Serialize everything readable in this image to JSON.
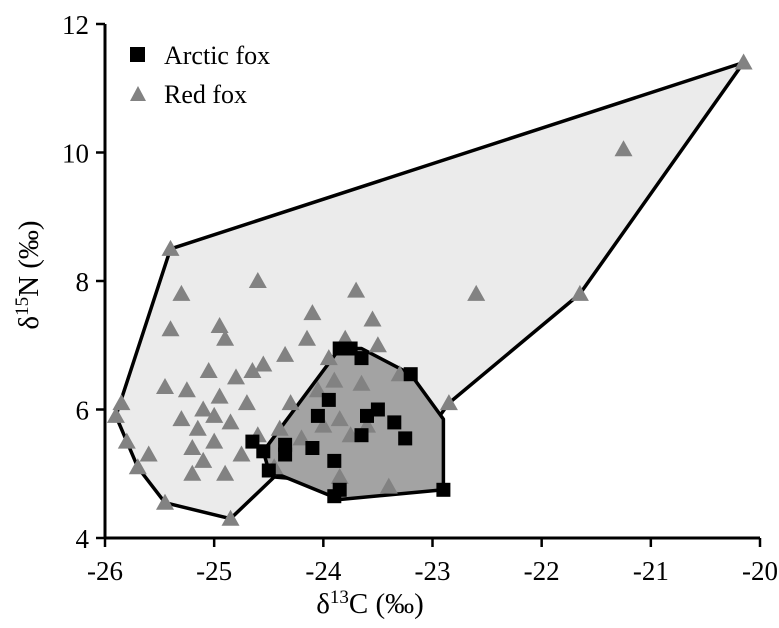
{
  "chart_data": {
    "type": "scatter",
    "xlabel": "δ13C (‰)",
    "ylabel": "δ15N (‰)",
    "xlabel_parts": {
      "prefix": "δ",
      "sup": "13",
      "suffix": "C (‰)"
    },
    "ylabel_parts": {
      "prefix": "δ",
      "sup": "15",
      "suffix": "N (‰)"
    },
    "xlim": [
      -26.0,
      -20.0
    ],
    "ylim": [
      4.0,
      12.0
    ],
    "xticks": [
      -26,
      -25,
      -24,
      -23,
      -22,
      -21,
      -20
    ],
    "yticks": [
      4,
      6,
      8,
      10,
      12
    ],
    "grid": false,
    "legend_position": "top-left",
    "series": [
      {
        "name": "Arctic fox",
        "marker": "square",
        "color": "#000000",
        "hull_fill": "#a3a3a3",
        "hull": [
          [
            -24.55,
            5.35
          ],
          [
            -23.85,
            6.95
          ],
          [
            -23.65,
            6.95
          ],
          [
            -23.2,
            6.55
          ],
          [
            -22.9,
            5.85
          ],
          [
            -22.9,
            4.75
          ],
          [
            -23.85,
            4.6
          ],
          [
            -24.5,
            5.05
          ]
        ],
        "points": [
          [
            -24.65,
            5.5
          ],
          [
            -24.55,
            5.35
          ],
          [
            -24.5,
            5.05
          ],
          [
            -24.35,
            5.3
          ],
          [
            -24.35,
            5.45
          ],
          [
            -24.1,
            5.4
          ],
          [
            -24.05,
            5.9
          ],
          [
            -23.95,
            6.15
          ],
          [
            -23.9,
            5.2
          ],
          [
            -23.9,
            4.65
          ],
          [
            -23.85,
            4.75
          ],
          [
            -23.85,
            6.95
          ],
          [
            -23.75,
            6.95
          ],
          [
            -23.65,
            6.8
          ],
          [
            -23.65,
            5.6
          ],
          [
            -23.6,
            5.9
          ],
          [
            -23.5,
            6.0
          ],
          [
            -23.35,
            5.8
          ],
          [
            -23.25,
            5.55
          ],
          [
            -23.2,
            6.55
          ],
          [
            -22.9,
            4.75
          ]
        ]
      },
      {
        "name": "Red fox",
        "marker": "triangle",
        "color": "#828282",
        "hull_fill": "#ebebeb",
        "hull": [
          [
            -25.9,
            5.9
          ],
          [
            -25.4,
            8.5
          ],
          [
            -20.15,
            11.4
          ],
          [
            -21.65,
            7.8
          ],
          [
            -22.85,
            6.1
          ],
          [
            -23.4,
            4.8
          ],
          [
            -24.45,
            4.95
          ],
          [
            -24.85,
            4.3
          ],
          [
            -25.45,
            4.55
          ],
          [
            -25.7,
            5.1
          ]
        ],
        "points": [
          [
            -25.9,
            5.9
          ],
          [
            -25.85,
            6.1
          ],
          [
            -25.8,
            5.5
          ],
          [
            -25.7,
            5.1
          ],
          [
            -25.6,
            5.3
          ],
          [
            -25.45,
            4.55
          ],
          [
            -25.45,
            6.35
          ],
          [
            -25.4,
            8.5
          ],
          [
            -25.4,
            7.25
          ],
          [
            -25.3,
            7.8
          ],
          [
            -25.3,
            5.85
          ],
          [
            -25.25,
            6.3
          ],
          [
            -25.2,
            5.4
          ],
          [
            -25.2,
            5.0
          ],
          [
            -25.15,
            5.7
          ],
          [
            -25.1,
            6.0
          ],
          [
            -25.1,
            5.2
          ],
          [
            -25.05,
            6.6
          ],
          [
            -25.0,
            5.9
          ],
          [
            -25.0,
            5.5
          ],
          [
            -24.95,
            7.3
          ],
          [
            -24.95,
            6.2
          ],
          [
            -24.9,
            7.1
          ],
          [
            -24.9,
            5.0
          ],
          [
            -24.85,
            4.3
          ],
          [
            -24.85,
            5.8
          ],
          [
            -24.8,
            6.5
          ],
          [
            -24.75,
            5.3
          ],
          [
            -24.7,
            6.1
          ],
          [
            -24.65,
            6.6
          ],
          [
            -24.6,
            8.0
          ],
          [
            -24.6,
            5.6
          ],
          [
            -24.55,
            6.7
          ],
          [
            -24.45,
            5.1
          ],
          [
            -24.4,
            5.7
          ],
          [
            -24.35,
            6.85
          ],
          [
            -24.3,
            6.1
          ],
          [
            -24.2,
            5.55
          ],
          [
            -24.15,
            7.1
          ],
          [
            -24.1,
            7.5
          ],
          [
            -24.05,
            6.3
          ],
          [
            -24.0,
            5.75
          ],
          [
            -23.95,
            6.8
          ],
          [
            -23.9,
            6.45
          ],
          [
            -23.85,
            5.85
          ],
          [
            -23.8,
            7.1
          ],
          [
            -23.75,
            5.6
          ],
          [
            -23.7,
            7.85
          ],
          [
            -23.65,
            6.4
          ],
          [
            -23.6,
            5.75
          ],
          [
            -23.55,
            7.4
          ],
          [
            -23.5,
            7.0
          ],
          [
            -23.3,
            6.55
          ],
          [
            -23.4,
            4.8
          ],
          [
            -23.85,
            4.95
          ],
          [
            -22.85,
            6.1
          ],
          [
            -22.6,
            7.8
          ],
          [
            -21.65,
            7.8
          ],
          [
            -21.25,
            10.05
          ],
          [
            -20.15,
            11.4
          ]
        ]
      }
    ]
  },
  "colors": {
    "arctic_marker": "#000000",
    "red_marker": "#828282",
    "arctic_hull": "#a3a3a3",
    "red_hull": "#ebebeb",
    "hull_stroke": "#000000",
    "axis": "#000000"
  }
}
